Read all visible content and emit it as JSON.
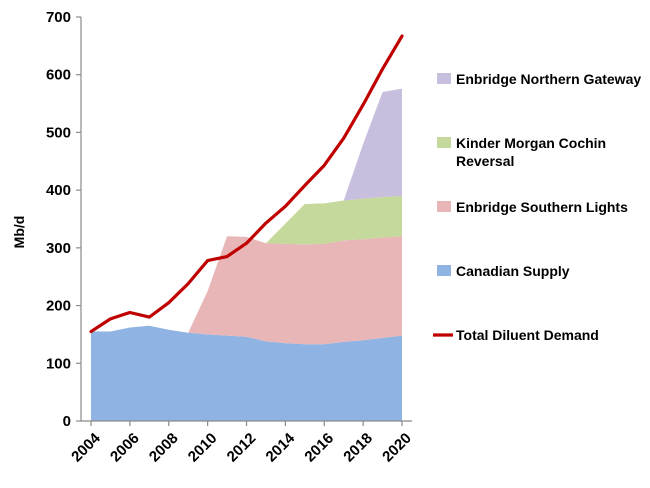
{
  "chart_data": {
    "type": "area",
    "title": "",
    "xlabel": "",
    "ylabel": "Mb/d",
    "xlim": [
      2004,
      2020
    ],
    "ylim": [
      0,
      700
    ],
    "x_ticks": [
      "2004",
      "2006",
      "2008",
      "2010",
      "2012",
      "2014",
      "2016",
      "2018",
      "2020"
    ],
    "y_ticks": [
      "0",
      "100",
      "200",
      "300",
      "400",
      "500",
      "600",
      "700"
    ],
    "grid": false,
    "legend": "right",
    "x": [
      2004,
      2005,
      2006,
      2007,
      2008,
      2009,
      2010,
      2011,
      2012,
      2013,
      2014,
      2015,
      2016,
      2017,
      2018,
      2019,
      2020
    ],
    "stack_series": [
      {
        "name": "Canadian Supply",
        "color": "#8fb3e3",
        "values": [
          155,
          155,
          162,
          165,
          158,
          153,
          150,
          148,
          146,
          138,
          135,
          133,
          133,
          137,
          140,
          144,
          148
        ]
      },
      {
        "name": "Enbridge Southern Lights",
        "color": "#e8b6b6",
        "values": [
          null,
          null,
          null,
          null,
          null,
          0,
          75,
          172,
          173,
          170,
          172,
          173,
          174,
          176,
          175,
          174,
          172
        ]
      },
      {
        "name": "Kinder Morgan Cochin Reversal",
        "color": "#c4d99b",
        "values": [
          null,
          null,
          null,
          null,
          null,
          null,
          null,
          null,
          null,
          0,
          35,
          70,
          70,
          69,
          70,
          70,
          70
        ]
      },
      {
        "name": "Enbridge Northern Gateway",
        "color": "#c8bedd",
        "values": [
          null,
          null,
          null,
          null,
          null,
          null,
          null,
          null,
          null,
          null,
          null,
          null,
          null,
          0,
          95,
          182,
          186
        ]
      }
    ],
    "line_series": {
      "name": "Total Diluent Demand",
      "color": "#c00000",
      "values": [
        155,
        177,
        188,
        180,
        205,
        238,
        278,
        285,
        308,
        343,
        372,
        408,
        443,
        490,
        548,
        610,
        667
      ]
    }
  }
}
